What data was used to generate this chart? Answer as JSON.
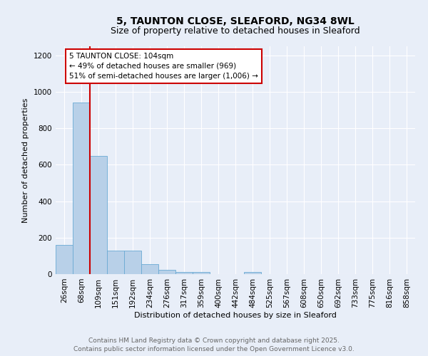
{
  "title_line1": "5, TAUNTON CLOSE, SLEAFORD, NG34 8WL",
  "title_line2": "Size of property relative to detached houses in Sleaford",
  "xlabel": "Distribution of detached houses by size in Sleaford",
  "ylabel": "Number of detached properties",
  "categories": [
    "26sqm",
    "68sqm",
    "109sqm",
    "151sqm",
    "192sqm",
    "234sqm",
    "276sqm",
    "317sqm",
    "359sqm",
    "400sqm",
    "442sqm",
    "484sqm",
    "525sqm",
    "567sqm",
    "608sqm",
    "650sqm",
    "692sqm",
    "733sqm",
    "775sqm",
    "816sqm",
    "858sqm"
  ],
  "values": [
    160,
    940,
    650,
    130,
    130,
    55,
    25,
    12,
    10,
    0,
    0,
    10,
    0,
    0,
    0,
    0,
    0,
    0,
    0,
    0,
    0
  ],
  "bar_color": "#b8d0e8",
  "bar_edge_color": "#6aaad4",
  "vline_color": "#cc0000",
  "annotation_text": "5 TAUNTON CLOSE: 104sqm\n← 49% of detached houses are smaller (969)\n51% of semi-detached houses are larger (1,006) →",
  "annotation_box_color": "#ffffff",
  "annotation_box_edge": "#cc0000",
  "ylim": [
    0,
    1250
  ],
  "yticks": [
    0,
    200,
    400,
    600,
    800,
    1000,
    1200
  ],
  "background_color": "#e8eef8",
  "grid_color": "#ffffff",
  "footer_line1": "Contains HM Land Registry data © Crown copyright and database right 2025.",
  "footer_line2": "Contains public sector information licensed under the Open Government Licence v3.0.",
  "title_fontsize": 10,
  "subtitle_fontsize": 9,
  "axis_label_fontsize": 8,
  "tick_fontsize": 7.5,
  "footer_fontsize": 6.5,
  "annotation_fontsize": 7.5
}
